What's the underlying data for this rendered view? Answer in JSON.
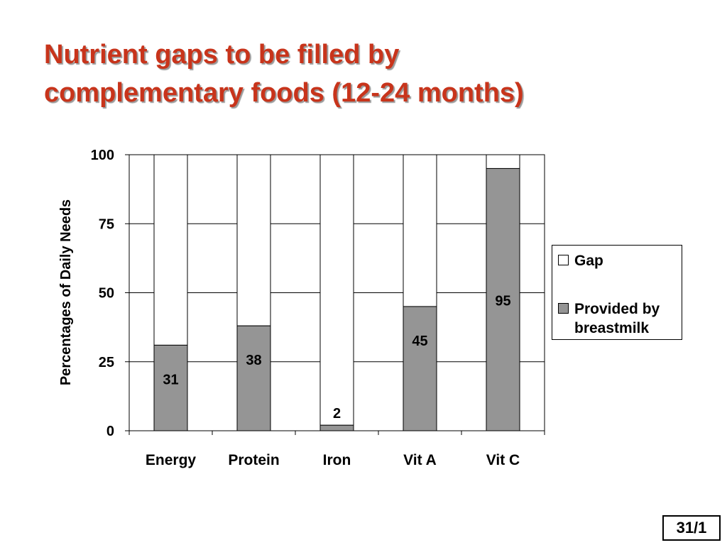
{
  "slide": {
    "title_line1": "Nutrient gaps to be filled by",
    "title_line2": "complementary foods (12-24 months)",
    "page_number": "31/1"
  },
  "colors": {
    "title": "#c8341b",
    "provided": "#959595",
    "gap": "#ffffff"
  },
  "chart_data": {
    "type": "bar",
    "stacked": true,
    "categories": [
      "Energy",
      "Protein",
      "Iron",
      "Vit A",
      "Vit C"
    ],
    "series": [
      {
        "name": "Provided by breastmilk",
        "values": [
          31,
          38,
          2,
          45,
          95
        ]
      },
      {
        "name": "Gap",
        "values": [
          69,
          62,
          98,
          55,
          5
        ]
      }
    ],
    "data_labels": [
      "31",
      "38",
      "2",
      "45",
      "95"
    ],
    "ylabel": "Percentages of Daily Needs",
    "xlabel": "",
    "ylim": [
      0,
      100
    ],
    "yticks": [
      0,
      25,
      50,
      75,
      100
    ],
    "grid": true,
    "legend_position": "right"
  },
  "legend": {
    "gap_label": "Gap",
    "provided_label": "Provided by breastmilk"
  }
}
